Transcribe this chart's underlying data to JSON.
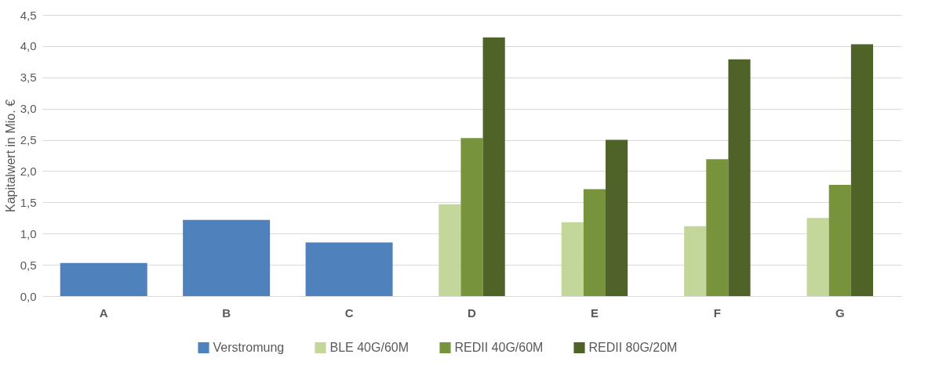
{
  "chart_data": {
    "type": "bar",
    "ylabel": "Kapitalwert in Mio. €",
    "categories": [
      "A",
      "B",
      "C",
      "D",
      "E",
      "F",
      "G"
    ],
    "series": [
      {
        "name": "Verstromung",
        "color": "#4f81bd",
        "values": [
          0.53,
          1.22,
          0.86,
          null,
          null,
          null,
          null
        ]
      },
      {
        "name": "BLE 40G/60M",
        "color": "#c4d79b",
        "values": [
          null,
          null,
          null,
          1.47,
          1.18,
          1.12,
          1.25
        ]
      },
      {
        "name": "REDII 40G/60M",
        "color": "#77933c",
        "values": [
          null,
          null,
          null,
          2.53,
          1.71,
          2.19,
          1.78
        ]
      },
      {
        "name": "REDII 80G/20M",
        "color": "#4f6228",
        "values": [
          null,
          null,
          null,
          4.14,
          2.5,
          3.79,
          4.03
        ]
      }
    ],
    "ylim": [
      0,
      4.5
    ],
    "yticks": [
      {
        "value": 0,
        "label": "0,0"
      },
      {
        "value": 0.5,
        "label": "0,5"
      },
      {
        "value": 1,
        "label": "1,0"
      },
      {
        "value": 1.5,
        "label": "1,5"
      },
      {
        "value": 2,
        "label": "2,0"
      },
      {
        "value": 2.5,
        "label": "2,5"
      },
      {
        "value": 3,
        "label": "3,0"
      },
      {
        "value": 3.5,
        "label": "3,5"
      },
      {
        "value": 4,
        "label": "4,0"
      },
      {
        "value": 4.5,
        "label": "4,5"
      }
    ],
    "grid": "y",
    "legend": "bottom"
  }
}
